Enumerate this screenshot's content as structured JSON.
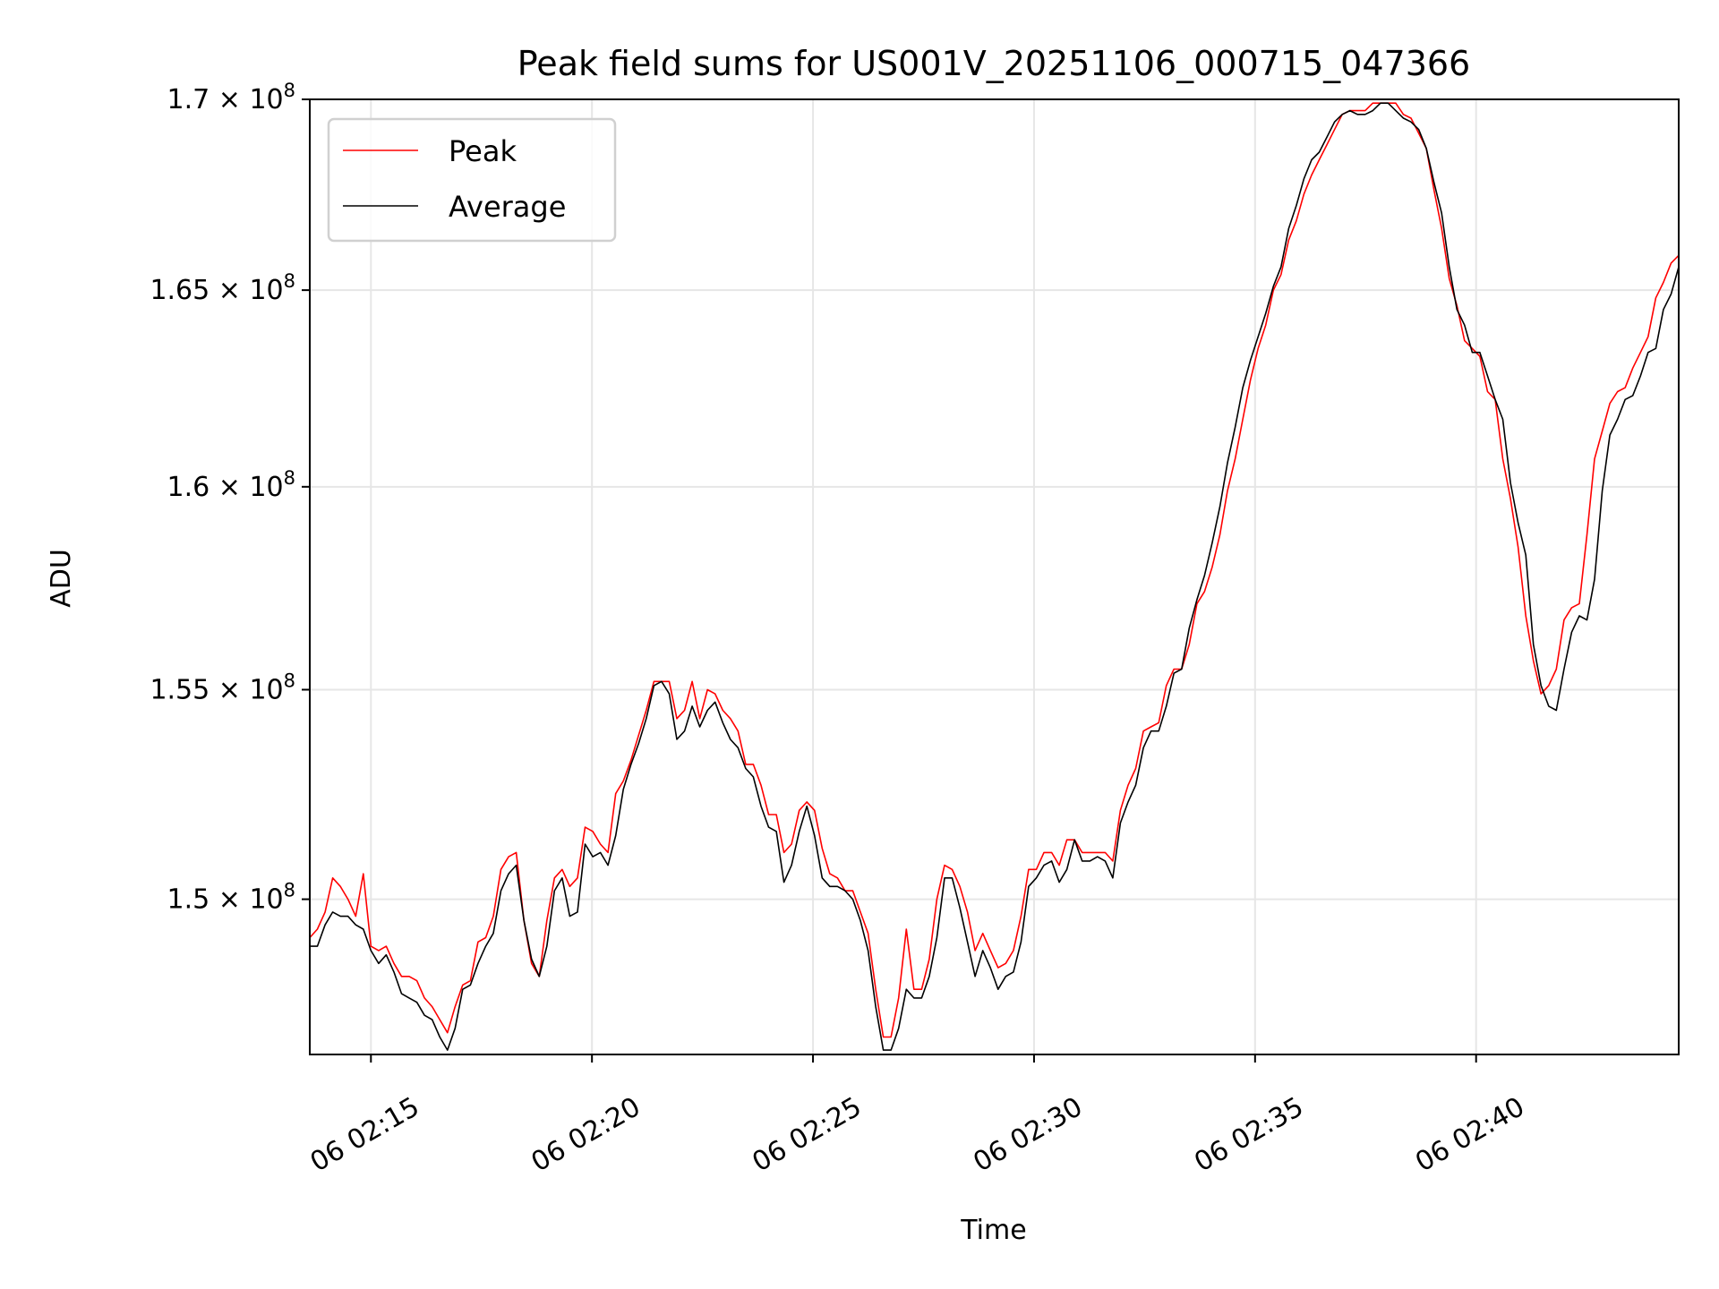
{
  "chart_data": {
    "type": "line",
    "title": "Peak field sums for US001V_20251106_000715_047366",
    "xlabel": "Time",
    "ylabel": "ADU",
    "y_scale": "log",
    "ylim": [
      146400000,
      170000000
    ],
    "y_unit_multiplier": 100000000,
    "y_ticks": [
      1.5,
      1.55,
      1.6,
      1.65,
      1.7
    ],
    "y_tick_labels": [
      "1.5 × 10^8",
      "1.55 × 10^8",
      "1.6 × 10^8",
      "1.65 × 10^8",
      "1.7 × 10^8"
    ],
    "x_start": "02:13:37",
    "x_end": "02:44:35",
    "x_ticks": [
      "02:15:00",
      "02:20:00",
      "02:25:00",
      "02:30:00",
      "02:35:00",
      "02:40:00"
    ],
    "x_tick_labels": [
      "06 02:15",
      "06 02:20",
      "06 02:25",
      "06 02:30",
      "06 02:35",
      "06 02:40"
    ],
    "grid": true,
    "legend": "top-left",
    "series": [
      {
        "name": "Peak",
        "color": "#ff0000",
        "values": [
          1.491,
          1.493,
          1.497,
          1.505,
          1.503,
          1.5,
          1.496,
          1.506,
          1.489,
          1.488,
          1.489,
          1.485,
          1.482,
          1.482,
          1.481,
          1.477,
          1.475,
          1.472,
          1.469,
          1.475,
          1.48,
          1.481,
          1.49,
          1.491,
          1.496,
          1.507,
          1.51,
          1.511,
          1.495,
          1.485,
          1.482,
          1.495,
          1.505,
          1.507,
          1.503,
          1.505,
          1.517,
          1.516,
          1.513,
          1.511,
          1.525,
          1.528,
          1.533,
          1.539,
          1.545,
          1.552,
          1.552,
          1.552,
          1.543,
          1.545,
          1.552,
          1.543,
          1.55,
          1.549,
          1.545,
          1.543,
          1.54,
          1.532,
          1.532,
          1.527,
          1.52,
          1.52,
          1.511,
          1.513,
          1.521,
          1.523,
          1.521,
          1.512,
          1.506,
          1.505,
          1.502,
          1.502,
          1.497,
          1.492,
          1.479,
          1.468,
          1.468,
          1.477,
          1.493,
          1.479,
          1.479,
          1.486,
          1.5,
          1.508,
          1.507,
          1.503,
          1.497,
          1.488,
          1.492,
          1.488,
          1.484,
          1.485,
          1.488,
          1.496,
          1.507,
          1.507,
          1.511,
          1.511,
          1.508,
          1.514,
          1.514,
          1.511,
          1.511,
          1.511,
          1.511,
          1.509,
          1.521,
          1.527,
          1.531,
          1.54,
          1.541,
          1.542,
          1.551,
          1.555,
          1.555,
          1.561,
          1.571,
          1.574,
          1.58,
          1.588,
          1.599,
          1.607,
          1.617,
          1.627,
          1.635,
          1.641,
          1.65,
          1.654,
          1.663,
          1.668,
          1.675,
          1.68,
          1.684,
          1.688,
          1.692,
          1.696,
          1.697,
          1.697,
          1.697,
          1.699,
          1.699,
          1.699,
          1.699,
          1.696,
          1.695,
          1.691,
          1.687,
          1.676,
          1.666,
          1.653,
          1.646,
          1.637,
          1.635,
          1.633,
          1.624,
          1.622,
          1.607,
          1.597,
          1.585,
          1.568,
          1.557,
          1.549,
          1.551,
          1.555,
          1.567,
          1.57,
          1.571,
          1.588,
          1.607,
          1.614,
          1.621,
          1.624,
          1.625,
          1.63,
          1.634,
          1.638,
          1.648,
          1.652,
          1.657,
          1.659
        ]
      },
      {
        "name": "Average",
        "color": "#000000",
        "values": [
          1.489,
          1.489,
          1.494,
          1.497,
          1.496,
          1.496,
          1.494,
          1.493,
          1.488,
          1.485,
          1.487,
          1.483,
          1.478,
          1.477,
          1.476,
          1.473,
          1.472,
          1.468,
          1.465,
          1.47,
          1.479,
          1.48,
          1.485,
          1.489,
          1.492,
          1.502,
          1.506,
          1.508,
          1.495,
          1.486,
          1.482,
          1.489,
          1.502,
          1.505,
          1.496,
          1.497,
          1.513,
          1.51,
          1.511,
          1.508,
          1.515,
          1.526,
          1.532,
          1.537,
          1.543,
          1.551,
          1.552,
          1.549,
          1.538,
          1.54,
          1.546,
          1.541,
          1.545,
          1.547,
          1.542,
          1.538,
          1.536,
          1.531,
          1.529,
          1.522,
          1.517,
          1.516,
          1.504,
          1.508,
          1.516,
          1.522,
          1.515,
          1.505,
          1.503,
          1.503,
          1.502,
          1.5,
          1.495,
          1.488,
          1.475,
          1.465,
          1.465,
          1.47,
          1.479,
          1.477,
          1.477,
          1.482,
          1.491,
          1.505,
          1.505,
          1.498,
          1.49,
          1.482,
          1.488,
          1.484,
          1.479,
          1.482,
          1.483,
          1.49,
          1.503,
          1.505,
          1.508,
          1.509,
          1.504,
          1.507,
          1.514,
          1.509,
          1.509,
          1.51,
          1.509,
          1.505,
          1.518,
          1.523,
          1.527,
          1.536,
          1.54,
          1.54,
          1.546,
          1.554,
          1.555,
          1.565,
          1.572,
          1.578,
          1.586,
          1.595,
          1.606,
          1.615,
          1.625,
          1.632,
          1.638,
          1.644,
          1.651,
          1.656,
          1.666,
          1.672,
          1.679,
          1.684,
          1.686,
          1.69,
          1.694,
          1.696,
          1.697,
          1.696,
          1.696,
          1.697,
          1.699,
          1.699,
          1.697,
          1.695,
          1.694,
          1.692,
          1.687,
          1.678,
          1.67,
          1.656,
          1.645,
          1.641,
          1.634,
          1.634,
          1.628,
          1.622,
          1.617,
          1.601,
          1.591,
          1.583,
          1.561,
          1.551,
          1.546,
          1.545,
          1.555,
          1.564,
          1.568,
          1.567,
          1.577,
          1.599,
          1.613,
          1.617,
          1.622,
          1.623,
          1.628,
          1.634,
          1.635,
          1.645,
          1.649,
          1.656
        ]
      }
    ]
  }
}
